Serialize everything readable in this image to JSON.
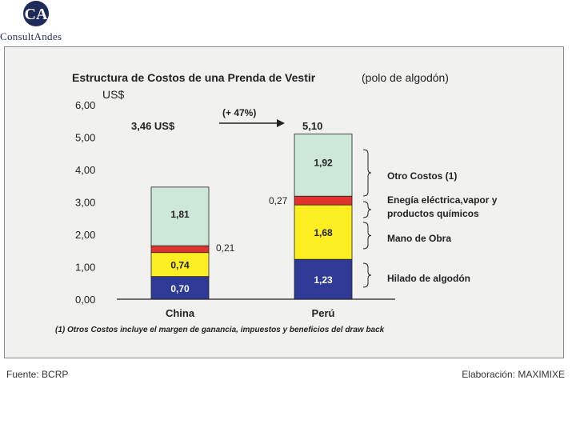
{
  "logo": {
    "name": "ConsultAndes",
    "mark": "CA"
  },
  "chart_data": {
    "type": "bar",
    "stacked": true,
    "title": "Estructura de Costos de una Prenda de Vestir",
    "subtitle": "(polo de algodón)",
    "ylabel": "US$",
    "ylim": [
      0,
      6
    ],
    "yticks": [
      "0,00",
      "1,00",
      "2,00",
      "3,00",
      "4,00",
      "5,00",
      "6,00"
    ],
    "categories": [
      "China",
      "Perú"
    ],
    "totals": [
      "3,46 US$",
      "5,10"
    ],
    "change_label": "(+ 47%)",
    "series": [
      {
        "name": "Hilado de algodón",
        "color": "#2e3a96",
        "values": [
          0.7,
          1.23
        ],
        "labels": [
          "0,70",
          "1,23"
        ]
      },
      {
        "name": "Mano de Obra",
        "color": "#fcee21",
        "values": [
          0.74,
          1.68
        ],
        "labels": [
          "0,74",
          "1,68"
        ]
      },
      {
        "name": "Enegía eléctrica,vapor y productos químicos",
        "color": "#e0332e",
        "values": [
          0.21,
          0.27
        ],
        "labels": [
          "0,21",
          "0,27"
        ]
      },
      {
        "name": "Otro Costos (1)",
        "color": "#cde8d9",
        "values": [
          1.81,
          1.92
        ],
        "labels": [
          "1,81",
          "1,92"
        ]
      }
    ],
    "legend": [
      {
        "lines": [
          "Otro Costos (1)"
        ]
      },
      {
        "lines": [
          "Enegía eléctrica,vapor y",
          "productos químicos"
        ]
      },
      {
        "lines": [
          "Mano de Obra"
        ]
      },
      {
        "lines": [
          "Hilado de algodón"
        ]
      }
    ],
    "footnote": "(1) Otros Costos incluye el margen de ganancia, impuestos y beneficios del draw back"
  },
  "footer": {
    "source": "Fuente: BCRP",
    "credit": "Elaboración: MAXIMIXE"
  }
}
